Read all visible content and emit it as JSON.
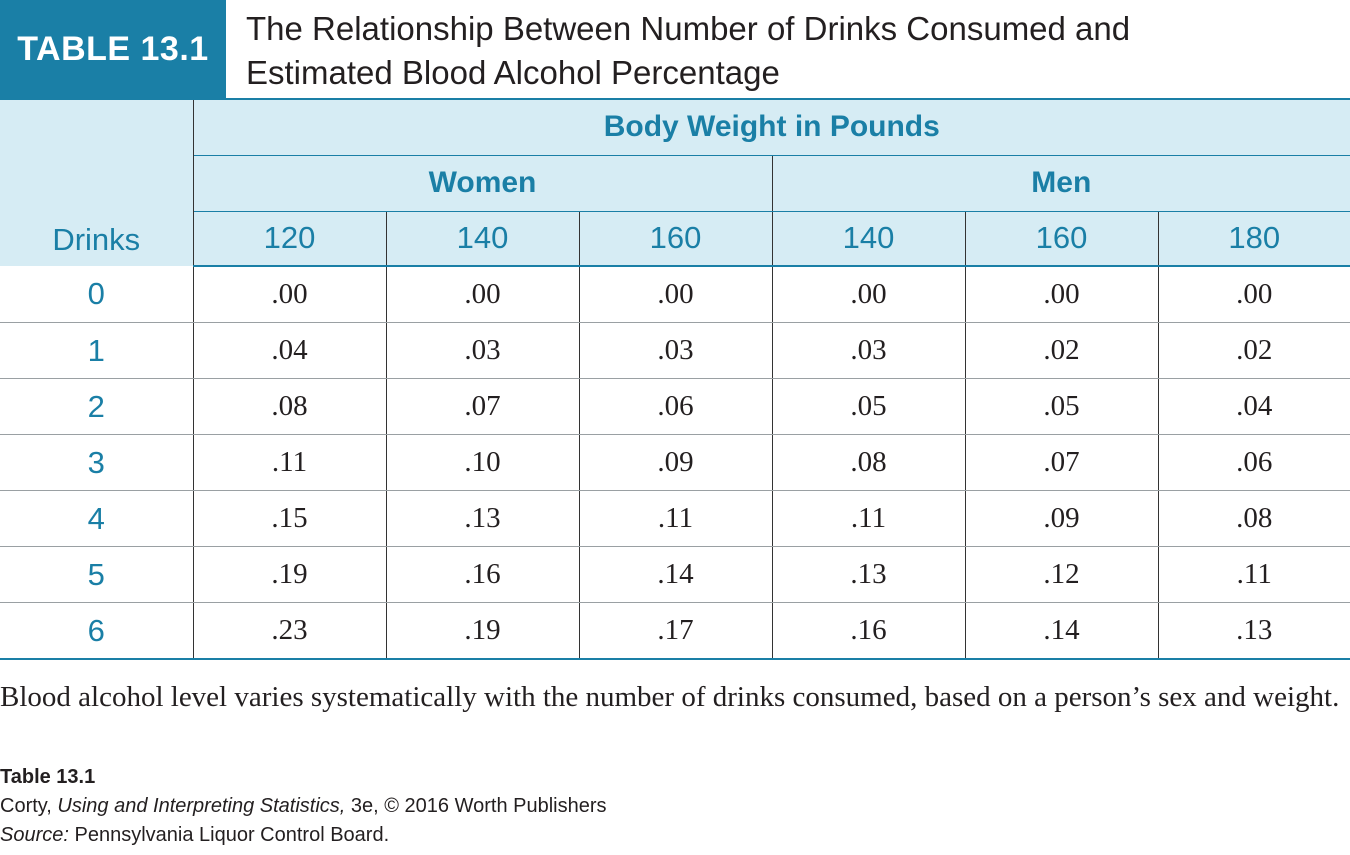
{
  "header": {
    "label": "TABLE 13.1",
    "title_line1": "The Relationship Between Number of Drinks Consumed and",
    "title_line2": "Estimated Blood Alcohol Percentage"
  },
  "table": {
    "super_header": "Body Weight in Pounds",
    "row_header": "Drinks",
    "groups": [
      "Women",
      "Men"
    ],
    "weights": [
      "120",
      "140",
      "160",
      "140",
      "160",
      "180"
    ],
    "rows": [
      {
        "drinks": "0",
        "values": [
          ".00",
          ".00",
          ".00",
          ".00",
          ".00",
          ".00"
        ]
      },
      {
        "drinks": "1",
        "values": [
          ".04",
          ".03",
          ".03",
          ".03",
          ".02",
          ".02"
        ]
      },
      {
        "drinks": "2",
        "values": [
          ".08",
          ".07",
          ".06",
          ".05",
          ".05",
          ".04"
        ]
      },
      {
        "drinks": "3",
        "values": [
          ".11",
          ".10",
          ".09",
          ".08",
          ".07",
          ".06"
        ]
      },
      {
        "drinks": "4",
        "values": [
          ".15",
          ".13",
          ".11",
          ".11",
          ".09",
          ".08"
        ]
      },
      {
        "drinks": "5",
        "values": [
          ".19",
          ".16",
          ".14",
          ".13",
          ".12",
          ".11"
        ]
      },
      {
        "drinks": "6",
        "values": [
          ".23",
          ".19",
          ".17",
          ".16",
          ".14",
          ".13"
        ]
      }
    ]
  },
  "caption": "Blood alcohol level varies systematically with the number of drinks consumed, based on a person’s sex and weight.",
  "credits": {
    "table_label": "Table 13.1",
    "author": "Corty,",
    "book_title": "Using and Interpreting Statistics,",
    "edition_publisher": "3e, © 2016 Worth Publishers",
    "source_label": "Source:",
    "source_text": "Pennsylvania Liquor Control Board."
  },
  "colors": {
    "accent": "#1a7fa6",
    "header_fill": "#d6ecf4",
    "text": "#231f20"
  }
}
